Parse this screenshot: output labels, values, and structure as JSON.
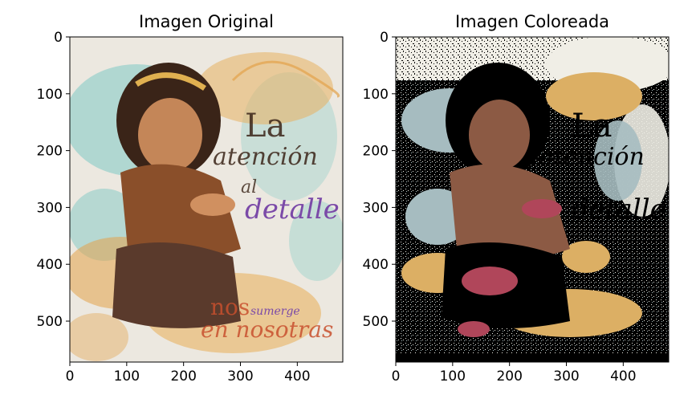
{
  "figure": {
    "background": "#ffffff",
    "axis_color": "#000000"
  },
  "chart_data": [
    {
      "type": "image",
      "title": "Imagen Original",
      "xlabel": "",
      "ylabel": "",
      "xlim": [
        0,
        480
      ],
      "ylim": [
        572,
        0
      ],
      "xticks": [
        0,
        100,
        200,
        300,
        400
      ],
      "yticks": [
        0,
        100,
        200,
        300,
        400,
        500
      ],
      "image_subject": "painting of a girl with calligraphy",
      "calligraphy_text": [
        "La",
        "atención",
        "al",
        "detalle",
        "nos",
        "sumerge",
        "en nosotras"
      ],
      "palette": [
        "#ece8e0",
        "#7fc8c4",
        "#e3a24a",
        "#7a4a2c",
        "#3a2418",
        "#7b4aa8",
        "#c8502e"
      ]
    },
    {
      "type": "image",
      "title": "Imagen Coloreada",
      "xlabel": "",
      "ylabel": "",
      "xlim": [
        0,
        480
      ],
      "ylim": [
        572,
        0
      ],
      "xticks": [
        0,
        100,
        200,
        300,
        400
      ],
      "yticks": [
        0,
        100,
        200,
        300,
        400,
        500
      ],
      "image_subject": "posterized version of the same painting",
      "palette": [
        "#000000",
        "#f0eee6",
        "#a6bcc0",
        "#dcaf64",
        "#b0465a",
        "#8c5a44"
      ]
    }
  ]
}
